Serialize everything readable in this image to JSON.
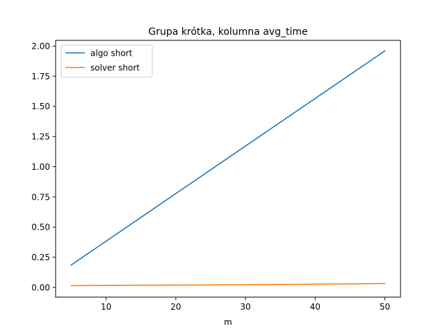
{
  "chart_data": {
    "type": "line",
    "title": "Grupa krótka, kolumna avg_time",
    "xlabel": "m",
    "ylabel": "",
    "xlim": [
      2.75,
      52.25
    ],
    "ylim": [
      -0.0808,
      2.0475
    ],
    "xticks": [
      {
        "value": 10,
        "label": "10"
      },
      {
        "value": 20,
        "label": "20"
      },
      {
        "value": 30,
        "label": "30"
      },
      {
        "value": 40,
        "label": "40"
      },
      {
        "value": 50,
        "label": "50"
      }
    ],
    "yticks": [
      {
        "value": 0.0,
        "label": "0.00"
      },
      {
        "value": 0.25,
        "label": "0.25"
      },
      {
        "value": 0.5,
        "label": "0.50"
      },
      {
        "value": 0.75,
        "label": "0.75"
      },
      {
        "value": 1.0,
        "label": "1.00"
      },
      {
        "value": 1.25,
        "label": "1.25"
      },
      {
        "value": 1.5,
        "label": "1.50"
      },
      {
        "value": 1.75,
        "label": "1.75"
      },
      {
        "value": 2.0,
        "label": "2.00"
      }
    ],
    "grid": false,
    "legend_position": "upper-left",
    "series": [
      {
        "name": "algo short",
        "color": "#1f77b4",
        "x": [
          5,
          50
        ],
        "y": [
          0.186,
          1.96
        ]
      },
      {
        "name": "solver short",
        "color": "#ff7f0e",
        "x": [
          5,
          10,
          20,
          30,
          40,
          50
        ],
        "y": [
          0.015,
          0.016,
          0.019,
          0.022,
          0.026,
          0.032
        ]
      }
    ]
  }
}
